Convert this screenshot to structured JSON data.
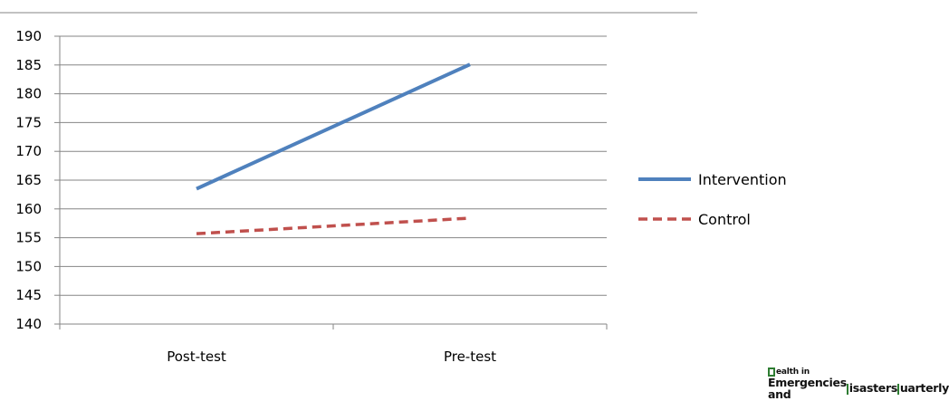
{
  "chart_data": {
    "type": "line",
    "categories": [
      "Post-test",
      "Pre-test"
    ],
    "series": [
      {
        "name": "Intervention",
        "values": [
          163.5,
          185.1
        ],
        "color": "#4f81bd",
        "style": "solid"
      },
      {
        "name": "Control",
        "values": [
          155.7,
          158.4
        ],
        "color": "#c0504d",
        "style": "dashed"
      }
    ],
    "ylim": [
      140,
      190
    ],
    "yticks": [
      140,
      145,
      150,
      155,
      160,
      165,
      170,
      175,
      180,
      185,
      190
    ],
    "grid": true,
    "legend_position": "right"
  },
  "footer": {
    "journal_line1": "ealth in",
    "journal_line2_a": "Emergencies and ",
    "journal_line2_b": "isasters ",
    "journal_line2_c": "uarterly"
  }
}
